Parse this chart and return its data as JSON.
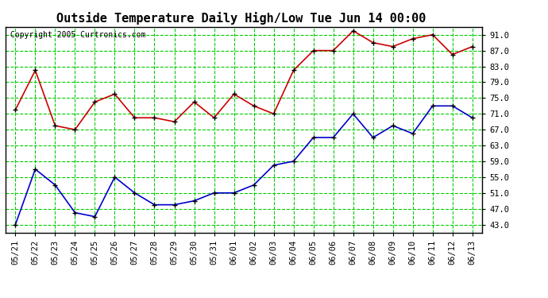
{
  "title": "Outside Temperature Daily High/Low Tue Jun 14 00:00",
  "copyright": "Copyright 2005 Curtronics.com",
  "x_labels": [
    "05/21",
    "05/22",
    "05/23",
    "05/24",
    "05/25",
    "05/26",
    "05/27",
    "05/28",
    "05/29",
    "05/30",
    "05/31",
    "06/01",
    "06/02",
    "06/03",
    "06/04",
    "06/05",
    "06/06",
    "06/07",
    "06/08",
    "06/09",
    "06/10",
    "06/11",
    "06/12",
    "06/13"
  ],
  "high_temps": [
    72,
    82,
    68,
    67,
    74,
    76,
    70,
    70,
    69,
    74,
    70,
    76,
    73,
    71,
    82,
    87,
    87,
    92,
    89,
    88,
    90,
    91,
    86,
    88
  ],
  "low_temps": [
    43,
    57,
    53,
    46,
    45,
    55,
    51,
    48,
    48,
    49,
    51,
    51,
    53,
    58,
    59,
    65,
    65,
    71,
    65,
    68,
    66,
    73,
    73,
    70
  ],
  "high_color": "#cc0000",
  "low_color": "#0000cc",
  "marker_color": "#000000",
  "bg_color": "#ffffff",
  "plot_bg_color": "#ffffff",
  "grid_color": "#00cc00",
  "border_color": "#000000",
  "ylim": [
    41,
    93
  ],
  "yticks": [
    43.0,
    47.0,
    51.0,
    55.0,
    59.0,
    63.0,
    67.0,
    71.0,
    75.0,
    79.0,
    83.0,
    87.0,
    91.0
  ],
  "title_fontsize": 11,
  "copyright_fontsize": 7,
  "tick_fontsize": 7.5
}
